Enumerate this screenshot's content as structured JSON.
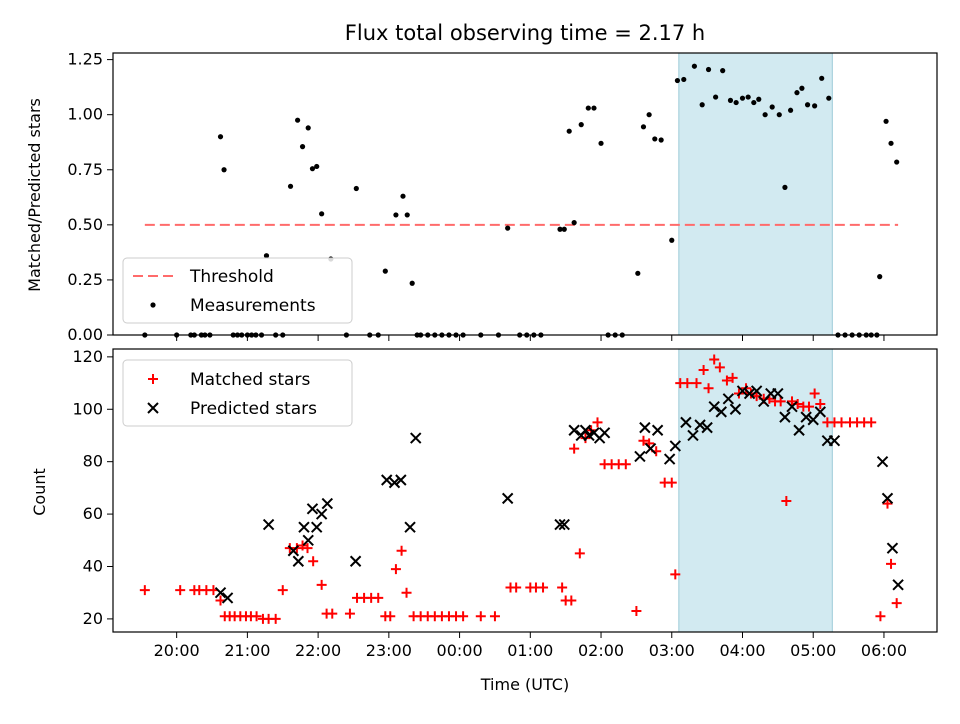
{
  "title": "Flux total observing time = 2.17 h",
  "chart_data": [
    {
      "type": "scatter",
      "ylabel": "Matched/Predicted stars",
      "ylim": [
        0,
        1.28
      ],
      "yticks": [
        0.0,
        0.25,
        0.5,
        0.75,
        1.0,
        1.25
      ],
      "ytick_labels": [
        "0.00",
        "0.25",
        "0.50",
        "0.75",
        "1.00",
        "1.25"
      ],
      "xlim": [
        19.1,
        30.75
      ],
      "threshold": 0.5,
      "highlight": {
        "start": 27.1,
        "end": 29.27,
        "color": "#add8e6"
      },
      "legend": {
        "placement": "lower-left",
        "entries": [
          "Threshold",
          "Measurements"
        ]
      },
      "series": [
        {
          "name": "Measurements",
          "color": "#000000",
          "x": [
            19.55,
            20,
            20.2,
            20.25,
            20.35,
            20.4,
            20.47,
            20.62,
            20.67,
            20.8,
            20.86,
            20.92,
            21,
            21.06,
            21.12,
            21.2,
            21.27,
            21.4,
            21.5,
            21.61,
            21.71,
            21.78,
            21.86,
            21.92,
            21.98,
            22.05,
            22.18,
            22.4,
            22.54,
            22.73,
            22.85,
            22.95,
            23.1,
            23.2,
            23.26,
            23.33,
            23.4,
            23.45,
            23.55,
            23.65,
            23.75,
            23.85,
            23.95,
            24.05,
            24.3,
            24.55,
            24.68,
            24.85,
            24.95,
            25.05,
            25.15,
            25.42,
            25.48,
            25.55,
            25.62,
            25.72,
            25.82,
            25.9,
            26,
            26.1,
            26.2,
            26.3,
            26.52,
            26.6,
            26.68,
            26.76,
            26.85,
            27,
            27.08,
            27.17,
            27.32,
            27.43,
            27.52,
            27.62,
            27.72,
            27.83,
            27.91,
            28,
            28.08,
            28.16,
            28.23,
            28.32,
            28.42,
            28.52,
            28.6,
            28.68,
            28.77,
            28.84,
            28.92,
            29.02,
            29.12,
            29.22,
            29.35,
            29.45,
            29.55,
            29.65,
            29.75,
            29.82,
            29.9,
            29.94,
            30.03,
            30.1,
            30.18
          ],
          "y": [
            0,
            0,
            0,
            0,
            0,
            0,
            0,
            0.9,
            0.75,
            0,
            0,
            0,
            0,
            0,
            0,
            0,
            0.36,
            0,
            0,
            0.675,
            0.975,
            0.855,
            0.94,
            0.755,
            0.765,
            0.55,
            0.345,
            0,
            0.665,
            0,
            0,
            0.29,
            0.545,
            0.63,
            0.545,
            0.235,
            0,
            0,
            0,
            0,
            0,
            0,
            0,
            0,
            0,
            0,
            0.485,
            0,
            0,
            0,
            0,
            0.48,
            0.48,
            0.925,
            0.51,
            0.955,
            1.03,
            1.03,
            0.87,
            0,
            0,
            0,
            0.28,
            0.945,
            1.0,
            0.89,
            0.885,
            0.43,
            1.155,
            1.16,
            1.22,
            1.045,
            1.205,
            1.08,
            1.2,
            1.065,
            1.055,
            1.075,
            1.08,
            1.055,
            1.07,
            1.0,
            1.035,
            1.0,
            0.67,
            1.02,
            1.1,
            1.12,
            1.045,
            1.04,
            1.165,
            1.075,
            0,
            0,
            0,
            0,
            0,
            0,
            0,
            0.265,
            0.97,
            0.87,
            0.785
          ]
        }
      ]
    },
    {
      "type": "scatter",
      "ylabel": "Count",
      "xlabel": "Time (UTC)",
      "ylim": [
        15,
        123
      ],
      "yticks": [
        20,
        40,
        60,
        80,
        100,
        120
      ],
      "ytick_labels": [
        "20",
        "40",
        "60",
        "80",
        "100",
        "120"
      ],
      "xlim": [
        19.1,
        30.75
      ],
      "xticks": [
        20,
        21,
        22,
        23,
        24,
        25,
        26,
        27,
        28,
        29,
        30
      ],
      "xtick_labels": [
        "20:00",
        "21:00",
        "22:00",
        "23:00",
        "00:00",
        "01:00",
        "02:00",
        "03:00",
        "04:00",
        "05:00",
        "06:00"
      ],
      "highlight": {
        "start": 27.1,
        "end": 29.27,
        "color": "#add8e6"
      },
      "legend": {
        "placement": "upper-left",
        "entries": [
          "Matched stars",
          "Predicted stars"
        ]
      },
      "series": [
        {
          "name": "Matched stars",
          "marker": "+",
          "color": "#ff0000",
          "x": [
            19.55,
            20.05,
            20.25,
            20.32,
            20.42,
            20.52,
            20.62,
            20.68,
            20.75,
            20.82,
            20.9,
            20.98,
            21.05,
            21.13,
            21.22,
            21.3,
            21.4,
            21.5,
            21.6,
            21.7,
            21.78,
            21.85,
            21.93,
            22.05,
            22.12,
            22.2,
            22.45,
            22.55,
            22.65,
            22.75,
            22.85,
            22.95,
            23.02,
            23.1,
            23.18,
            23.25,
            23.35,
            23.45,
            23.55,
            23.65,
            23.75,
            23.85,
            23.95,
            24.05,
            24.3,
            24.5,
            24.72,
            24.8,
            25.0,
            25.08,
            25.18,
            25.45,
            25.5,
            25.58,
            25.62,
            25.7,
            25.78,
            25.86,
            25.95,
            26.05,
            26.15,
            26.25,
            26.35,
            26.5,
            26.6,
            26.68,
            26.78,
            26.9,
            27.0,
            27.05,
            27.12,
            27.22,
            27.35,
            27.45,
            27.52,
            27.6,
            27.68,
            27.78,
            27.86,
            27.95,
            28.05,
            28.12,
            28.2,
            28.3,
            28.38,
            28.46,
            28.54,
            28.62,
            28.7,
            28.78,
            28.86,
            28.94,
            29.02,
            29.1,
            29.2,
            29.3,
            29.4,
            29.52,
            29.62,
            29.72,
            29.82,
            29.95,
            30.05,
            30.1,
            30.18
          ],
          "y": [
            31,
            31,
            31,
            31,
            31,
            31,
            27,
            21,
            21,
            21,
            21,
            21,
            21,
            21,
            20,
            20,
            20,
            31,
            47,
            47,
            48,
            47,
            42,
            33,
            22,
            22,
            22,
            28,
            28,
            28,
            28,
            21,
            21,
            39,
            46,
            30,
            21,
            21,
            21,
            21,
            21,
            21,
            21,
            21,
            21,
            21,
            32,
            32,
            32,
            32,
            32,
            32,
            27,
            27,
            85,
            45,
            89,
            92,
            95,
            79,
            79,
            79,
            79,
            23,
            88,
            87,
            84,
            72,
            72,
            37,
            110,
            110,
            110,
            115,
            108,
            119,
            116,
            111,
            112,
            106,
            108,
            106,
            105,
            104,
            104,
            103,
            103,
            65,
            103,
            102,
            101,
            101,
            106,
            102,
            95,
            95,
            95,
            95,
            95,
            95,
            95,
            21,
            64,
            41,
            26
          ]
        },
        {
          "name": "Predicted stars",
          "marker": "x",
          "color": "#000000",
          "x": [
            20.62,
            20.72,
            21.3,
            21.65,
            21.72,
            21.8,
            21.86,
            21.92,
            21.98,
            22.05,
            22.13,
            22.53,
            22.97,
            23.08,
            23.17,
            23.3,
            23.38,
            24.68,
            25.42,
            25.48,
            25.62,
            25.72,
            25.78,
            25.83,
            25.9,
            25.98,
            26.05,
            26.55,
            26.62,
            26.7,
            26.8,
            26.97,
            27.05,
            27.2,
            27.3,
            27.4,
            27.5,
            27.6,
            27.7,
            27.8,
            27.9,
            28.0,
            28.1,
            28.2,
            28.3,
            28.4,
            28.5,
            28.6,
            28.7,
            28.8,
            28.9,
            29.0,
            29.1,
            29.2,
            29.3,
            29.98,
            30.05,
            30.12,
            30.2
          ],
          "y": [
            30,
            28,
            56,
            46,
            42,
            55,
            50,
            62,
            55,
            60,
            64,
            42,
            73,
            72,
            73,
            55,
            89,
            66,
            56,
            56,
            92,
            90,
            92,
            90,
            91,
            89,
            91,
            82,
            93,
            85,
            92,
            81,
            86,
            95,
            90,
            94,
            93,
            101,
            99,
            104,
            100,
            107,
            106,
            107,
            103,
            106,
            106,
            97,
            101,
            92,
            97,
            96,
            99,
            88,
            88,
            80,
            66,
            47,
            33
          ]
        }
      ]
    }
  ]
}
